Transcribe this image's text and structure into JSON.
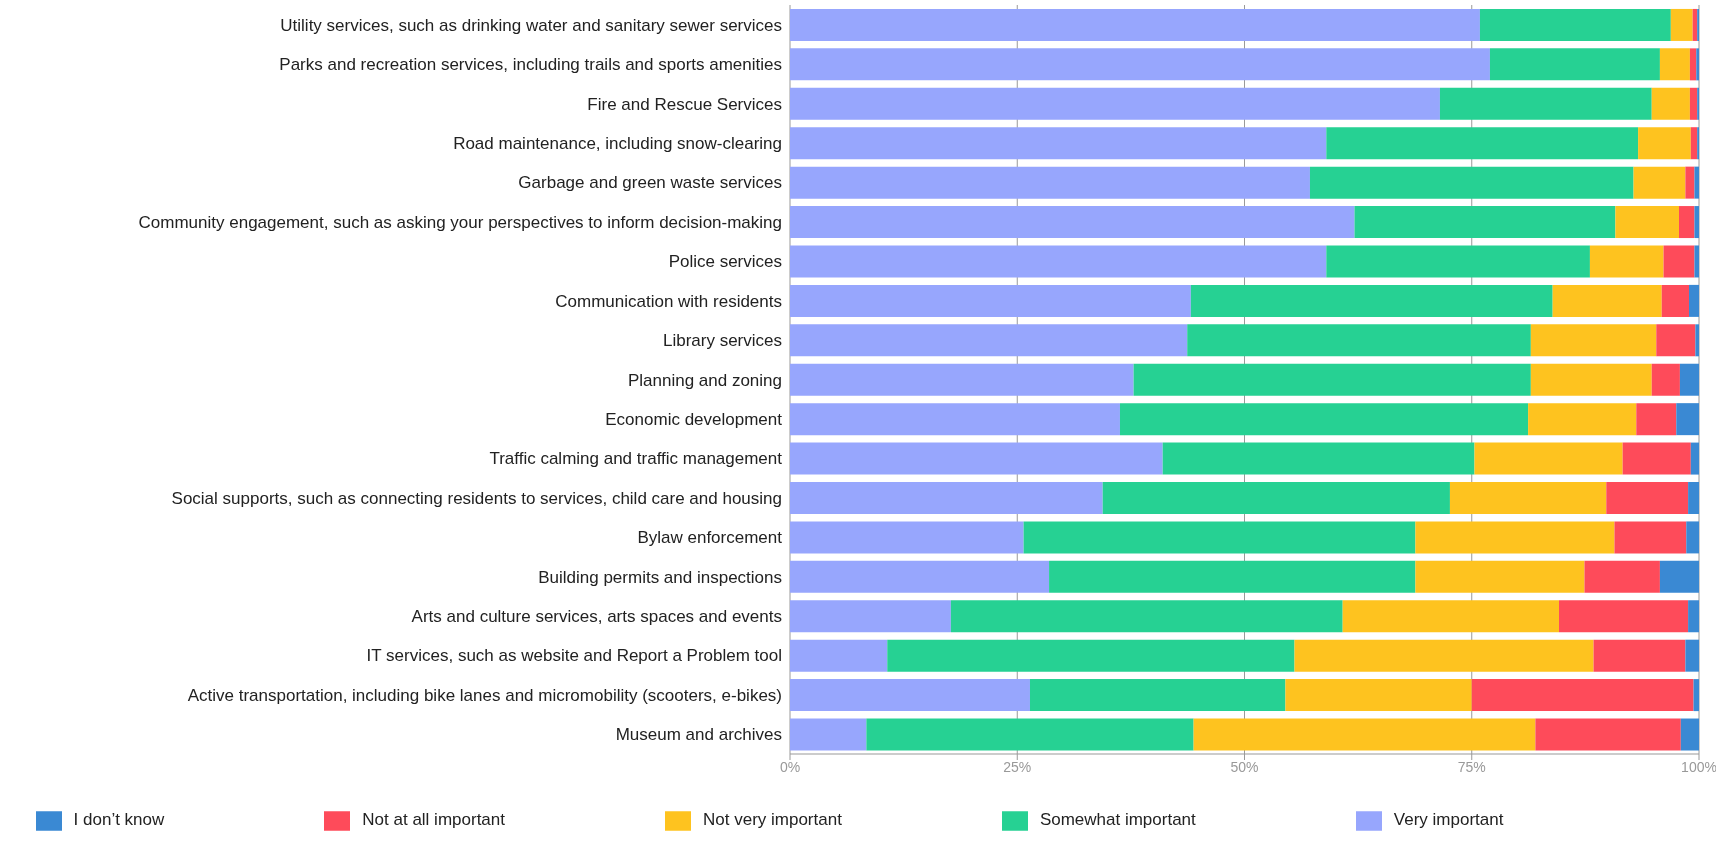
{
  "chart_data": {
    "type": "bar",
    "orientation": "horizontal",
    "stacked": true,
    "categories": [
      "Utility services, such as drinking water and sanitary sewer services",
      "Parks and recreation services, including trails and sports amenities",
      "Fire and Rescue Services",
      "Road maintenance, including snow-clearing",
      "Garbage and green waste services",
      "Community engagement, such as asking your perspectives to inform decision-making",
      "Police services",
      "Communication with residents",
      "Library services",
      "Planning and zoning",
      "Economic development",
      "Traffic calming and traffic management",
      "Social supports, such as connecting residents to services, child care and housing",
      "Bylaw enforcement",
      "Building permits and inspections",
      "Arts and culture services, arts spaces and events",
      "IT services, such as website and Report a Problem tool",
      "Active transportation, including bike lanes and micromobility (scooters, e-bikes)",
      "Museum and archives"
    ],
    "series": [
      {
        "name": "Very important",
        "color": "#97a6fd",
        "values": [
          75.9,
          77,
          71.5,
          59,
          57.2,
          62.1,
          59,
          44.1,
          43.7,
          37.8,
          36.3,
          41,
          34.4,
          25.7,
          28.5,
          17.7,
          10.7,
          26.4,
          8.4
        ]
      },
      {
        "name": "Somewhat important",
        "color": "#26d193",
        "values": [
          21,
          18.7,
          23.3,
          34.3,
          35.6,
          28.7,
          29,
          39.8,
          37.8,
          43.7,
          44.9,
          34.3,
          38.2,
          43.1,
          40.3,
          43.1,
          44.8,
          28.1,
          36
        ]
      },
      {
        "name": "Not very important",
        "color": "#fec31f",
        "values": [
          2.4,
          3.3,
          4.2,
          5.8,
          5.7,
          7,
          8.1,
          12,
          13.8,
          13.3,
          11.9,
          16.3,
          17.2,
          21.9,
          18.6,
          23.8,
          32.9,
          20.5,
          37.6
        ]
      },
      {
        "name": "Not at all important",
        "color": "#fe4b5a",
        "values": [
          0.5,
          0.7,
          0.8,
          0.7,
          1,
          1.7,
          3.4,
          3,
          4.3,
          3.1,
          4.4,
          7.5,
          9,
          7.9,
          8.3,
          14.2,
          10.1,
          24.4,
          16
        ]
      },
      {
        "name": "I don’t know",
        "color": "#3a89d3",
        "values": [
          0.2,
          0.3,
          0.2,
          0.2,
          0.5,
          0.5,
          0.5,
          1.1,
          0.4,
          2.1,
          2.5,
          0.9,
          1.2,
          1.4,
          4.3,
          1.2,
          1.5,
          0.6,
          2
        ]
      }
    ],
    "xlim": [
      0,
      100
    ],
    "xticks": [
      {
        "value": 0,
        "label": "0%"
      },
      {
        "value": 25,
        "label": "25%"
      },
      {
        "value": 50,
        "label": "50%"
      },
      {
        "value": 75,
        "label": "75%"
      },
      {
        "value": 100,
        "label": "100%"
      }
    ],
    "grid": "x",
    "legend": "bottom"
  }
}
